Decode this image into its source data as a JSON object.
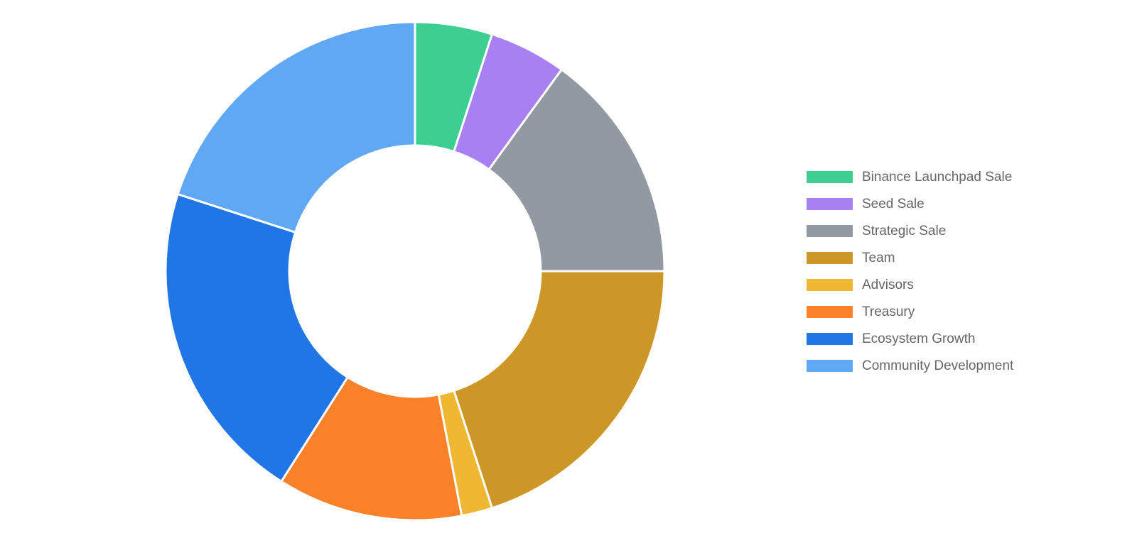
{
  "chart_data": {
    "type": "doughnut",
    "series": [
      {
        "name": "Binance Launchpad Sale",
        "color": "#3ccf91",
        "value": 5
      },
      {
        "name": "Seed Sale",
        "color": "#a781f2",
        "value": 5
      },
      {
        "name": "Strategic Sale",
        "color": "#9199a2",
        "value": 15
      },
      {
        "name": "Team",
        "color": "#cd9727",
        "value": 20
      },
      {
        "name": "Advisors",
        "color": "#efb732",
        "value": 2
      },
      {
        "name": "Treasury",
        "color": "#f88129",
        "value": 12
      },
      {
        "name": "Ecosystem Growth",
        "color": "#2176e6",
        "value": 21
      },
      {
        "name": "Community Development",
        "color": "#61a8f4",
        "value": 20
      }
    ],
    "legend": "right"
  }
}
